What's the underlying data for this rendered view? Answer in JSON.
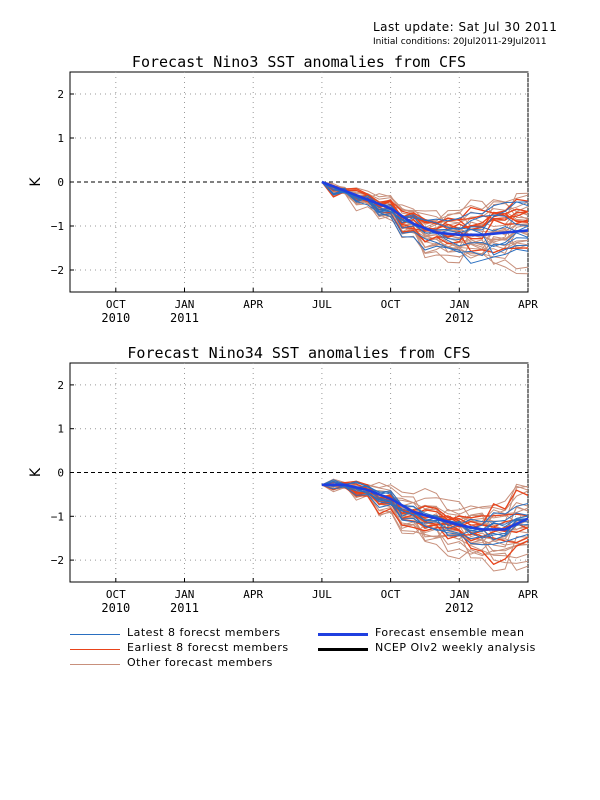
{
  "header": {
    "last_update": "Last update: Sat Jul 30 2011",
    "initial_condition": "Initial conditions: 20Jul2011-29Jul2011"
  },
  "colors": {
    "latest": "#2a6fc0",
    "earliest": "#e8431a",
    "other": "#c8907c",
    "mean": "#1f3fe0",
    "analysis": "#000000"
  },
  "legend": {
    "latest": "Latest 8 forecst members",
    "earliest": "Earliest 8 forecst members",
    "other": "Other forecast members",
    "mean": "Forecast ensemble mean",
    "analysis": "NCEP OIv2 weekly analysis"
  },
  "chart_data": [
    {
      "type": "line",
      "title": "Forecast Nino3 SST anomalies from CFS",
      "ylabel": "K",
      "ylim": [
        -2.5,
        2.5
      ],
      "yticks": [
        -2,
        -1,
        0,
        1,
        2
      ],
      "ytick_labels": [
        "−2",
        "−1",
        "0",
        "1",
        "2"
      ],
      "x_range": [
        "2010-08",
        "2012-04"
      ],
      "x_ticks": [
        {
          "x": "2010-10",
          "label": "OCT",
          "year": "2010"
        },
        {
          "x": "2011-01",
          "label": "JAN",
          "year": "2011"
        },
        {
          "x": "2011-04",
          "label": "APR",
          "year": ""
        },
        {
          "x": "2011-07",
          "label": "JUL",
          "year": ""
        },
        {
          "x": "2011-10",
          "label": "OCT",
          "year": ""
        },
        {
          "x": "2012-01",
          "label": "JAN",
          "year": "2012"
        },
        {
          "x": "2012-04",
          "label": "APR",
          "year": ""
        }
      ],
      "grid": true,
      "zero_line": true,
      "series": [
        {
          "name": "Forecast ensemble mean",
          "x": [
            "2011-07",
            "2011-08",
            "2011-09",
            "2011-10",
            "2011-11",
            "2011-12",
            "2012-01",
            "2012-02",
            "2012-03",
            "2012-04"
          ],
          "values": [
            0.0,
            -0.2,
            -0.4,
            -0.6,
            -0.95,
            -1.15,
            -1.2,
            -1.2,
            -1.15,
            -1.1
          ]
        },
        {
          "name": "Latest 8 forecst members",
          "count": 8
        },
        {
          "name": "Earliest 8 forecst members",
          "count": 8
        },
        {
          "name": "Other forecast members",
          "count": 24
        }
      ]
    },
    {
      "type": "line",
      "title": "Forecast Nino34 SST anomalies from CFS",
      "ylabel": "K",
      "ylim": [
        -2.5,
        2.5
      ],
      "yticks": [
        -2,
        -1,
        0,
        1,
        2
      ],
      "ytick_labels": [
        "−2",
        "−1",
        "0",
        "1",
        "2"
      ],
      "x_range": [
        "2010-08",
        "2012-04"
      ],
      "x_ticks": [
        {
          "x": "2010-10",
          "label": "OCT",
          "year": "2010"
        },
        {
          "x": "2011-01",
          "label": "JAN",
          "year": "2011"
        },
        {
          "x": "2011-04",
          "label": "APR",
          "year": ""
        },
        {
          "x": "2011-07",
          "label": "JUL",
          "year": ""
        },
        {
          "x": "2011-10",
          "label": "OCT",
          "year": ""
        },
        {
          "x": "2012-01",
          "label": "JAN",
          "year": "2012"
        },
        {
          "x": "2012-04",
          "label": "APR",
          "year": ""
        }
      ],
      "grid": true,
      "zero_line": true,
      "series": [
        {
          "name": "Forecast ensemble mean",
          "x": [
            "2011-07",
            "2011-08",
            "2011-09",
            "2011-10",
            "2011-11",
            "2011-12",
            "2012-01",
            "2012-02",
            "2012-03",
            "2012-04"
          ],
          "values": [
            -0.28,
            -0.28,
            -0.4,
            -0.6,
            -0.9,
            -1.05,
            -1.2,
            -1.3,
            -1.3,
            -1.05
          ]
        },
        {
          "name": "Latest 8 forecst members",
          "count": 8
        },
        {
          "name": "Earliest 8 forecst members",
          "count": 8
        },
        {
          "name": "Other forecast members",
          "count": 24
        }
      ]
    }
  ]
}
